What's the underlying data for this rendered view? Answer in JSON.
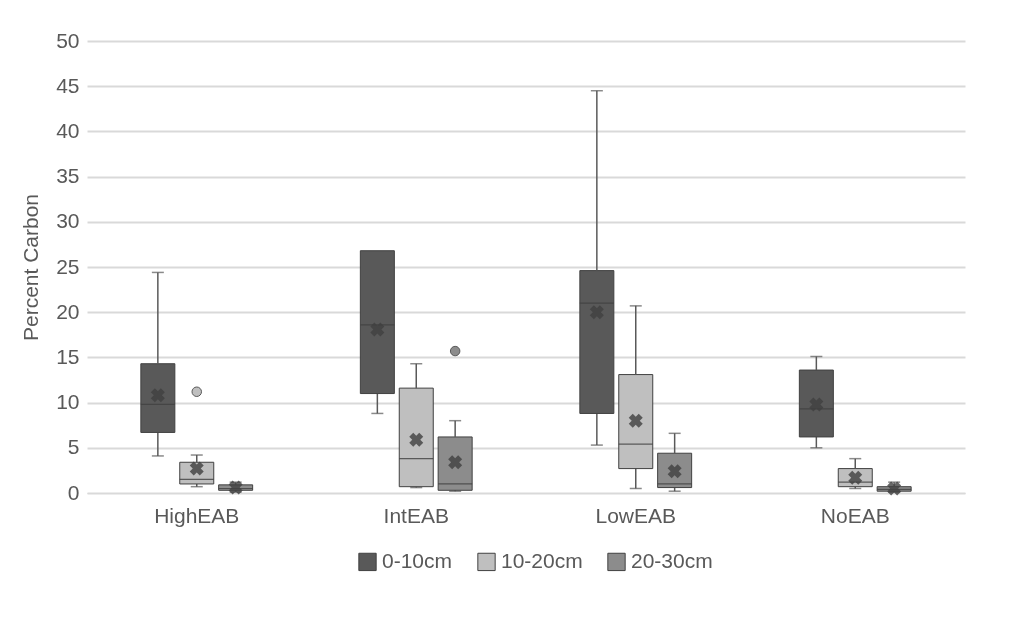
{
  "chart_data": {
    "type": "box",
    "ylabel": "Percent Carbon",
    "categories": [
      "HighEAB",
      "IntEAB",
      "LowEAB",
      "NoEAB"
    ],
    "series": [
      {
        "name": "0-10cm",
        "color": "#595959",
        "boxes": [
          {
            "low": 4.1,
            "q1": 6.7,
            "median": 9.8,
            "q3": 14.3,
            "high": 24.4,
            "mean": 10.8
          },
          {
            "low": 8.8,
            "q1": 11.0,
            "median": 18.6,
            "q3": 26.8,
            "high": 26.8,
            "mean": 18.1
          },
          {
            "low": 5.3,
            "q1": 8.8,
            "median": 21.0,
            "q3": 24.6,
            "high": 44.5,
            "mean": 20.0
          },
          {
            "low": 5.0,
            "q1": 6.2,
            "median": 9.3,
            "q3": 13.6,
            "high": 15.1,
            "mean": 9.8
          }
        ]
      },
      {
        "name": "10-20cm",
        "color": "#bfbfbf",
        "boxes": [
          {
            "low": 0.7,
            "q1": 1.0,
            "median": 1.5,
            "q3": 3.4,
            "high": 4.2,
            "mean": 2.7,
            "outliers": [
              11.2
            ]
          },
          {
            "low": 0.6,
            "q1": 0.7,
            "median": 3.8,
            "q3": 11.6,
            "high": 14.3,
            "mean": 5.9
          },
          {
            "low": 0.5,
            "q1": 2.7,
            "median": 5.4,
            "q3": 13.1,
            "high": 20.7,
            "mean": 8.0
          },
          {
            "low": 0.5,
            "q1": 0.7,
            "median": 1.2,
            "q3": 2.7,
            "high": 3.8,
            "mean": 1.7
          }
        ]
      },
      {
        "name": "20-30cm",
        "color": "#8c8c8c",
        "boxes": [
          {
            "low": 0.1,
            "q1": 0.3,
            "median": 0.5,
            "q3": 0.9,
            "high": 1.2,
            "mean": 0.6
          },
          {
            "low": 0.2,
            "q1": 0.3,
            "median": 1.0,
            "q3": 6.2,
            "high": 8.0,
            "mean": 3.4,
            "outliers": [
              15.7
            ]
          },
          {
            "low": 0.2,
            "q1": 0.6,
            "median": 1.0,
            "q3": 4.4,
            "high": 6.6,
            "mean": 2.4
          },
          {
            "low": 0.1,
            "q1": 0.2,
            "median": 0.4,
            "q3": 0.7,
            "high": 1.2,
            "mean": 0.5
          }
        ]
      }
    ],
    "ylim": [
      0,
      50
    ],
    "yticks": [
      0,
      5,
      10,
      15,
      20,
      25,
      30,
      35,
      40,
      45,
      50
    ],
    "grid": "y",
    "legend": "bottom"
  }
}
